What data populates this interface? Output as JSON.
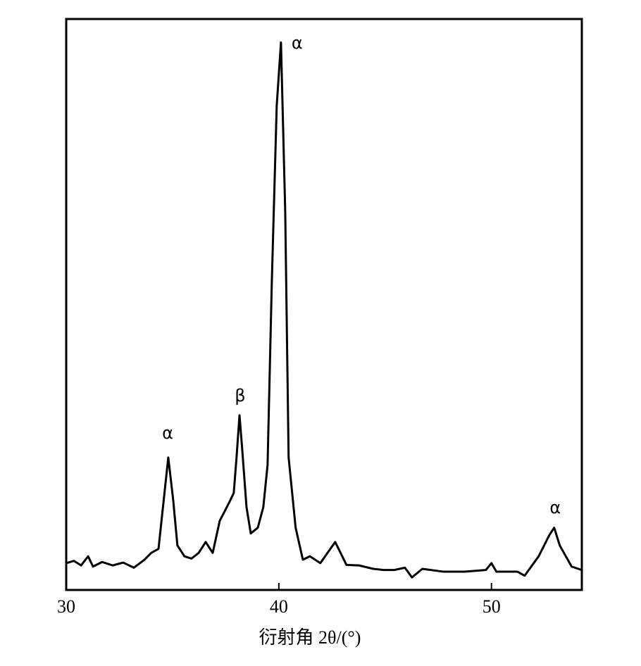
{
  "chart_data": {
    "type": "line",
    "x_label": "衍射角 2θ/(°)",
    "xlim": [
      30,
      54.25
    ],
    "xticks": [
      30,
      40,
      50
    ],
    "ylim": [
      0,
      100
    ],
    "x": [
      30,
      30.36,
      30.7,
      31.03,
      31.26,
      31.69,
      32.19,
      32.68,
      33.18,
      33.68,
      34.0,
      34.34,
      34.57,
      34.8,
      35.03,
      35.23,
      35.56,
      35.89,
      36.23,
      36.56,
      36.89,
      37.22,
      37.65,
      37.88,
      38.01,
      38.15,
      38.28,
      38.48,
      38.68,
      39.01,
      39.27,
      39.47,
      39.67,
      39.9,
      40.1,
      40.3,
      40.46,
      40.79,
      41.13,
      41.46,
      41.95,
      42.65,
      43.18,
      43.77,
      44.44,
      44.93,
      45.43,
      45.93,
      46.26,
      46.75,
      47.75,
      48.74,
      49.74,
      50.0,
      50.23,
      51.22,
      51.56,
      52.22,
      52.72,
      52.95,
      53.21,
      53.77,
      54.24
    ],
    "values": [
      4.7,
      5.1,
      4.3,
      5.9,
      4.1,
      4.9,
      4.3,
      4.8,
      3.9,
      5.3,
      6.5,
      7.2,
      15.2,
      23.2,
      15.8,
      7.8,
      5.9,
      5.5,
      6.5,
      8.4,
      6.5,
      12.1,
      15.2,
      17.0,
      23.2,
      30.6,
      24.5,
      14.5,
      9.9,
      10.9,
      14.5,
      21.9,
      54.0,
      84.8,
      95.9,
      66.3,
      23.2,
      10.9,
      5.3,
      5.9,
      4.7,
      8.4,
      4.4,
      4.3,
      3.7,
      3.5,
      3.5,
      3.9,
      2.2,
      3.7,
      3.2,
      3.2,
      3.5,
      4.7,
      3.2,
      3.2,
      2.5,
      5.9,
      9.6,
      10.9,
      7.8,
      4.1,
      3.5
    ],
    "color": "#000000",
    "annotations": [
      {
        "text": "α",
        "x": 34.77,
        "y": 27.4
      },
      {
        "text": "β",
        "x": 38.18,
        "y": 33.9
      },
      {
        "text": "α",
        "x": 40.86,
        "y": 95.7
      },
      {
        "text": "α",
        "x": 53.0,
        "y": 14.3
      }
    ]
  }
}
